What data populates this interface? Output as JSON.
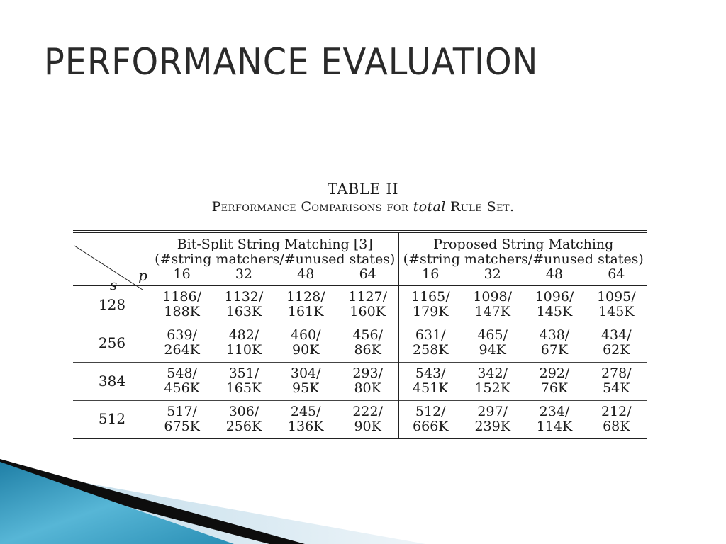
{
  "slide": {
    "title": "PERFORMANCE EVALUATION"
  },
  "caption": {
    "line1": "TABLE II",
    "line2_part1": "Performance Comparisons for ",
    "line2_italic": "total",
    "line2_part2": " Rule Set."
  },
  "table": {
    "corner": {
      "row_var": "s",
      "col_var": "p"
    },
    "groups": [
      {
        "title": "Bit-Split String Matching [3]",
        "subtitle": "(#string matchers/#unused states)"
      },
      {
        "title": "Proposed String Matching",
        "subtitle": "(#string matchers/#unused states)"
      }
    ],
    "p_values": [
      "16",
      "32",
      "48",
      "64",
      "16",
      "32",
      "48",
      "64"
    ],
    "rows": [
      {
        "s": "128",
        "cells": [
          [
            "1186/",
            "188K"
          ],
          [
            "1132/",
            "163K"
          ],
          [
            "1128/",
            "161K"
          ],
          [
            "1127/",
            "160K"
          ],
          [
            "1165/",
            "179K"
          ],
          [
            "1098/",
            "147K"
          ],
          [
            "1096/",
            "145K"
          ],
          [
            "1095/",
            "145K"
          ]
        ]
      },
      {
        "s": "256",
        "cells": [
          [
            "639/",
            "264K"
          ],
          [
            "482/",
            "110K"
          ],
          [
            "460/",
            "90K"
          ],
          [
            "456/",
            "86K"
          ],
          [
            "631/",
            "258K"
          ],
          [
            "465/",
            "94K"
          ],
          [
            "438/",
            "67K"
          ],
          [
            "434/",
            "62K"
          ]
        ]
      },
      {
        "s": "384",
        "cells": [
          [
            "548/",
            "456K"
          ],
          [
            "351/",
            "165K"
          ],
          [
            "304/",
            "95K"
          ],
          [
            "293/",
            "80K"
          ],
          [
            "543/",
            "451K"
          ],
          [
            "342/",
            "152K"
          ],
          [
            "292/",
            "76K"
          ],
          [
            "278/",
            "54K"
          ]
        ]
      },
      {
        "s": "512",
        "cells": [
          [
            "517/",
            "675K"
          ],
          [
            "306/",
            "256K"
          ],
          [
            "245/",
            "136K"
          ],
          [
            "222/",
            "90K"
          ],
          [
            "512/",
            "666K"
          ],
          [
            "297/",
            "239K"
          ],
          [
            "234/",
            "114K"
          ],
          [
            "212/",
            "68K"
          ]
        ]
      }
    ]
  },
  "theme": {
    "accent_blue": "#2a8fb5",
    "accent_dark": "#0d0d0d",
    "accent_light": "#cfe3ee"
  }
}
